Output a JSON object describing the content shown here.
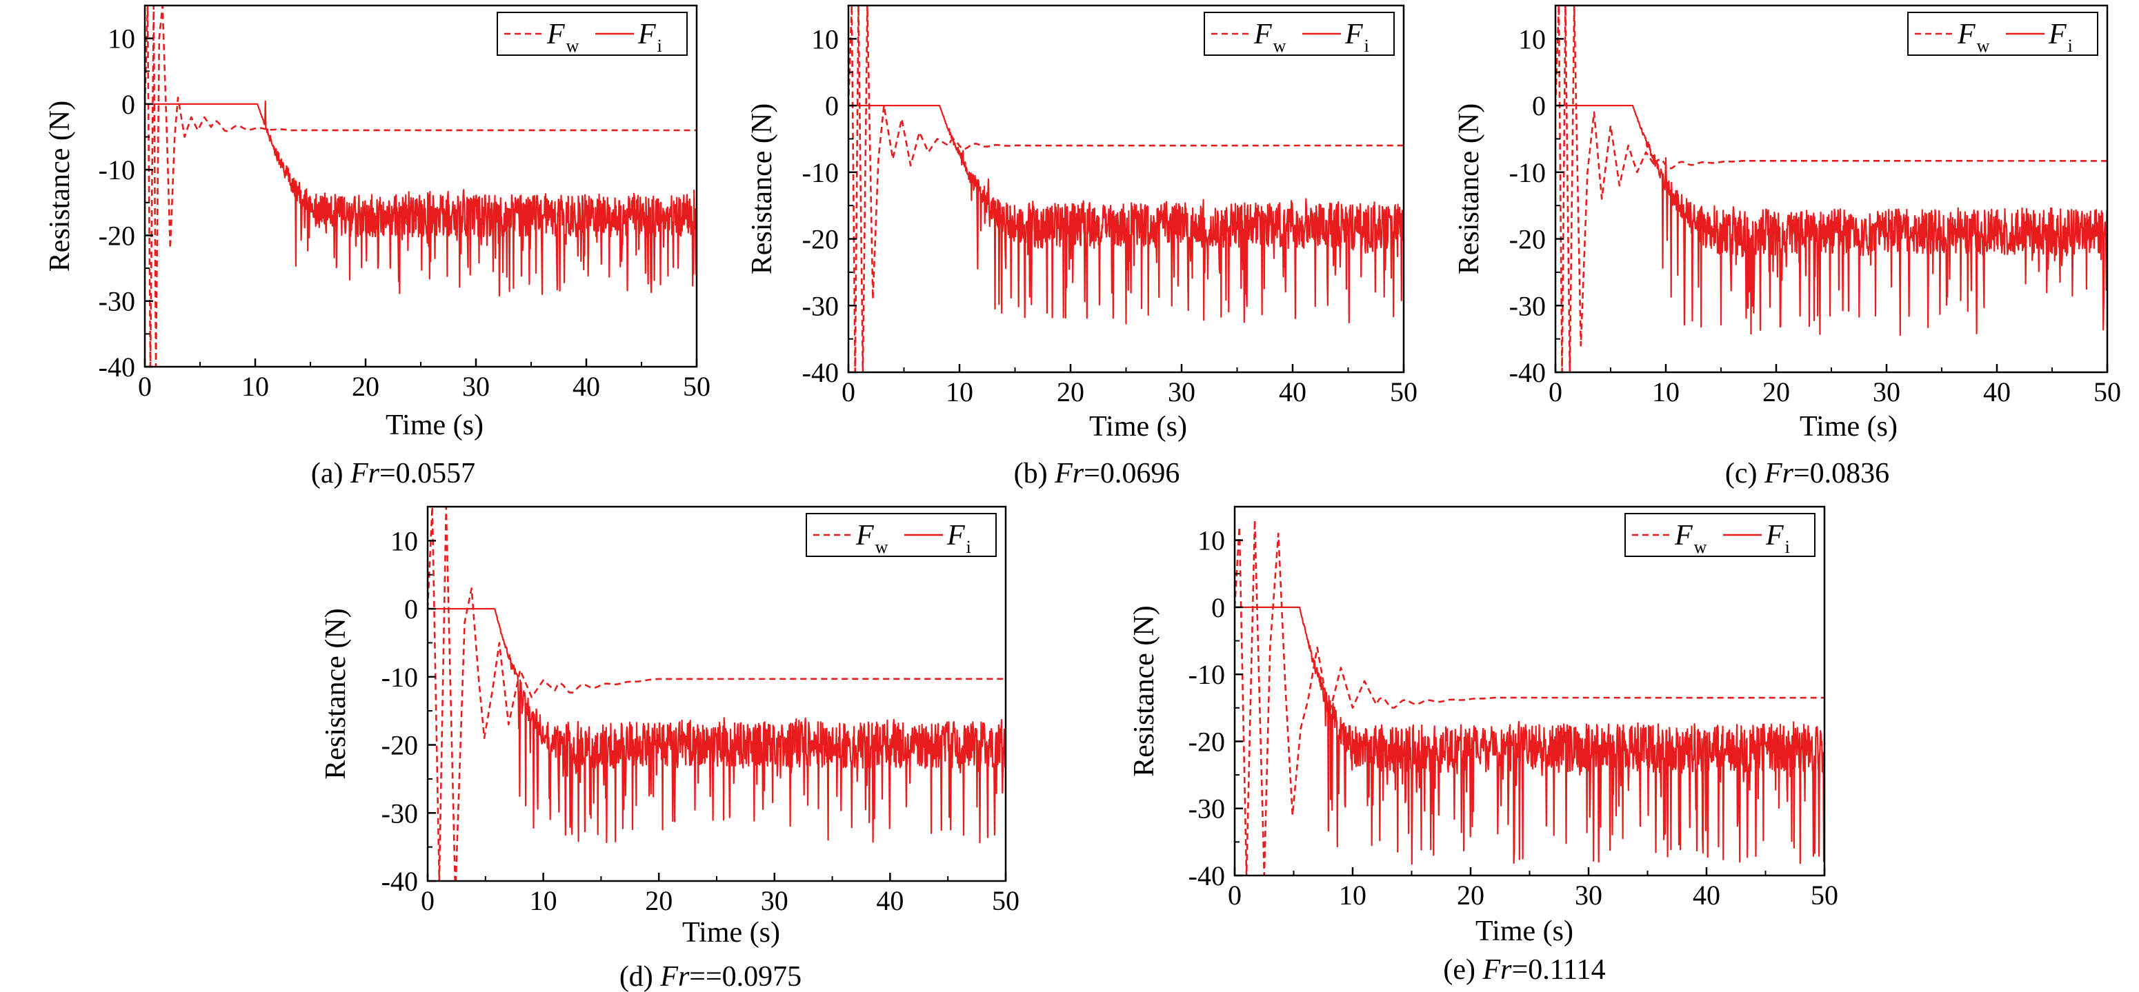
{
  "colors": {
    "line": "#e81c1c",
    "axis": "#000000",
    "background": "#ffffff"
  },
  "chart_data": [
    {
      "type": "line",
      "caption_prefix": "(a) ",
      "caption_var": "Fr",
      "caption_value": "=0.0557",
      "xlabel": "Time (s)",
      "ylabel": "Resistance (N)",
      "xlim": [
        0,
        50
      ],
      "ylim": [
        -40,
        15
      ],
      "xticks": [
        0,
        10,
        20,
        30,
        40,
        50
      ],
      "yticks": [
        -40,
        -30,
        -20,
        -10,
        0,
        10
      ],
      "grid": false,
      "legend_position": "top-right",
      "legend": [
        {
          "symbol": "F",
          "subscript": "w",
          "style": "dashed"
        },
        {
          "symbol": "F",
          "subscript": "i",
          "style": "solid"
        }
      ],
      "series": [
        {
          "style": "dashed",
          "startup": [
            [
              0,
              0
            ],
            [
              0.25,
              15
            ],
            [
              0.5,
              -40
            ],
            [
              0.8,
              15
            ],
            [
              1.0,
              -40
            ],
            [
              1.3,
              10
            ],
            [
              1.6,
              15
            ],
            [
              2.0,
              -5
            ],
            [
              2.3,
              -22
            ],
            [
              2.7,
              -5
            ],
            [
              3.0,
              1
            ],
            [
              3.6,
              -5
            ],
            [
              4.2,
              -2
            ],
            [
              4.8,
              -4
            ],
            [
              5.4,
              -2
            ],
            [
              6.0,
              -3.5
            ]
          ],
          "settle": {
            "t0": 6.0,
            "t1": 14,
            "from": -3.5,
            "to": -4.0
          },
          "final": -4.0,
          "end": 50
        },
        {
          "style": "solid",
          "flat_until": 10.2,
          "ramp_until": 17,
          "mean": -17,
          "noise": 3.2,
          "spike_rate": 0.1,
          "spike_min": -29,
          "end": 50
        }
      ]
    },
    {
      "type": "line",
      "caption_prefix": "(b) ",
      "caption_var": "Fr",
      "caption_value": "=0.0696",
      "xlabel": "Time (s)",
      "ylabel": "Resistance (N)",
      "xlim": [
        0,
        50
      ],
      "ylim": [
        -40,
        15
      ],
      "xticks": [
        0,
        10,
        20,
        30,
        40,
        50
      ],
      "yticks": [
        -40,
        -30,
        -20,
        -10,
        0,
        10
      ],
      "grid": false,
      "legend_position": "top-right",
      "legend": [
        {
          "symbol": "F",
          "subscript": "w",
          "style": "dashed"
        },
        {
          "symbol": "F",
          "subscript": "i",
          "style": "solid"
        }
      ],
      "series": [
        {
          "style": "dashed",
          "startup": [
            [
              0,
              0
            ],
            [
              0.3,
              15
            ],
            [
              0.6,
              -40
            ],
            [
              0.9,
              15
            ],
            [
              1.3,
              -40
            ],
            [
              1.7,
              15
            ],
            [
              2.2,
              -29
            ],
            [
              2.7,
              -8
            ],
            [
              3.2,
              0
            ],
            [
              4.0,
              -8
            ],
            [
              4.8,
              -2
            ],
            [
              5.6,
              -9
            ],
            [
              6.4,
              -4
            ],
            [
              7.2,
              -7
            ],
            [
              8.0,
              -5
            ],
            [
              9.0,
              -6
            ]
          ],
          "settle": {
            "t0": 9.0,
            "t1": 16,
            "from": -6.0,
            "to": -6.0
          },
          "final": -6.0,
          "end": 50
        },
        {
          "style": "solid",
          "flat_until": 8.2,
          "ramp_until": 16,
          "mean": -18,
          "noise": 3.4,
          "spike_rate": 0.1,
          "spike_min": -33,
          "end": 50
        }
      ]
    },
    {
      "type": "line",
      "caption_prefix": "(c) ",
      "caption_var": "Fr",
      "caption_value": "=0.0836",
      "xlabel": "Time (s)",
      "ylabel": "Resistance (N)",
      "xlim": [
        0,
        50
      ],
      "ylim": [
        -40,
        15
      ],
      "xticks": [
        0,
        10,
        20,
        30,
        40,
        50
      ],
      "yticks": [
        -40,
        -30,
        -20,
        -10,
        0,
        10
      ],
      "grid": false,
      "legend_position": "top-right",
      "legend": [
        {
          "symbol": "F",
          "subscript": "w",
          "style": "dashed"
        },
        {
          "symbol": "F",
          "subscript": "i",
          "style": "solid"
        }
      ],
      "series": [
        {
          "style": "dashed",
          "startup": [
            [
              0,
              0
            ],
            [
              0.3,
              15
            ],
            [
              0.6,
              -40
            ],
            [
              0.9,
              15
            ],
            [
              1.3,
              -40
            ],
            [
              1.7,
              15
            ],
            [
              2.3,
              -36
            ],
            [
              2.9,
              -10
            ],
            [
              3.5,
              -1
            ],
            [
              4.2,
              -14
            ],
            [
              5.0,
              -3
            ],
            [
              5.8,
              -12
            ],
            [
              6.6,
              -6
            ],
            [
              7.4,
              -10
            ],
            [
              8.2,
              -7
            ],
            [
              9.0,
              -9
            ]
          ],
          "settle": {
            "t0": 9.0,
            "t1": 17,
            "from": -9.0,
            "to": -8.3
          },
          "final": -8.3,
          "end": 50
        },
        {
          "style": "solid",
          "flat_until": 7.0,
          "ramp_until": 15,
          "mean": -19,
          "noise": 3.5,
          "spike_rate": 0.1,
          "spike_min": -35,
          "end": 50
        }
      ]
    },
    {
      "type": "line",
      "caption_prefix": "(d) ",
      "caption_var": "Fr",
      "caption_value": "==0.0975",
      "xlabel": "Time (s)",
      "ylabel": "Resistance (N)",
      "xlim": [
        0,
        50
      ],
      "ylim": [
        -40,
        15
      ],
      "xticks": [
        0,
        10,
        20,
        30,
        40,
        50
      ],
      "yticks": [
        -40,
        -30,
        -20,
        -10,
        0,
        10
      ],
      "grid": false,
      "legend_position": "top-right",
      "legend": [
        {
          "symbol": "F",
          "subscript": "w",
          "style": "dashed"
        },
        {
          "symbol": "F",
          "subscript": "i",
          "style": "solid"
        }
      ],
      "series": [
        {
          "style": "dashed",
          "startup": [
            [
              0,
              0
            ],
            [
              0.4,
              15
            ],
            [
              1.0,
              -40
            ],
            [
              1.6,
              15
            ],
            [
              2.4,
              -42
            ],
            [
              3.2,
              -2
            ],
            [
              3.8,
              3
            ],
            [
              4.4,
              -10
            ],
            [
              4.9,
              -19
            ],
            [
              5.6,
              -12
            ],
            [
              6.2,
              -5
            ],
            [
              7.0,
              -17
            ],
            [
              8.0,
              -9
            ],
            [
              9.0,
              -13
            ],
            [
              10.0,
              -10.5
            ],
            [
              11.0,
              -12
            ]
          ],
          "settle": {
            "t0": 11.0,
            "t1": 20,
            "from": -12.0,
            "to": -10.3
          },
          "final": -10.3,
          "end": 50
        },
        {
          "style": "solid",
          "flat_until": 5.8,
          "ramp_until": 12,
          "mean": -20,
          "noise": 3.4,
          "spike_rate": 0.1,
          "spike_min": -35,
          "end": 50
        }
      ]
    },
    {
      "type": "line",
      "caption_prefix": "(e) ",
      "caption_var": "Fr",
      "caption_value": "=0.1114",
      "xlabel": "Time (s)",
      "ylabel": "Resistance (N)",
      "xlim": [
        0,
        50
      ],
      "ylim": [
        -40,
        15
      ],
      "xticks": [
        0,
        10,
        20,
        30,
        40,
        50
      ],
      "yticks": [
        -40,
        -30,
        -20,
        -10,
        0,
        10
      ],
      "grid": false,
      "legend_position": "top-right",
      "legend": [
        {
          "symbol": "F",
          "subscript": "w",
          "style": "dashed"
        },
        {
          "symbol": "F",
          "subscript": "i",
          "style": "solid"
        }
      ],
      "series": [
        {
          "style": "dashed",
          "startup": [
            [
              0,
              0
            ],
            [
              0.4,
              12
            ],
            [
              1.0,
              -40
            ],
            [
              1.7,
              13
            ],
            [
              2.5,
              -40
            ],
            [
              3.0,
              -6
            ],
            [
              3.7,
              11
            ],
            [
              4.3,
              -12
            ],
            [
              4.9,
              -31
            ],
            [
              5.6,
              -18
            ],
            [
              6.2,
              -14
            ],
            [
              7.0,
              -6
            ],
            [
              8.0,
              -16
            ],
            [
              9.0,
              -9
            ],
            [
              10.0,
              -15
            ],
            [
              11.0,
              -11
            ],
            [
              12.0,
              -14.5
            ]
          ],
          "settle": {
            "t0": 12.0,
            "t1": 22,
            "from": -14.5,
            "to": -13.5
          },
          "final": -13.5,
          "end": 50
        },
        {
          "style": "solid",
          "flat_until": 5.5,
          "ramp_until": 11,
          "mean": -21,
          "noise": 3.6,
          "spike_rate": 0.11,
          "spike_min": -39,
          "end": 50
        }
      ]
    }
  ]
}
